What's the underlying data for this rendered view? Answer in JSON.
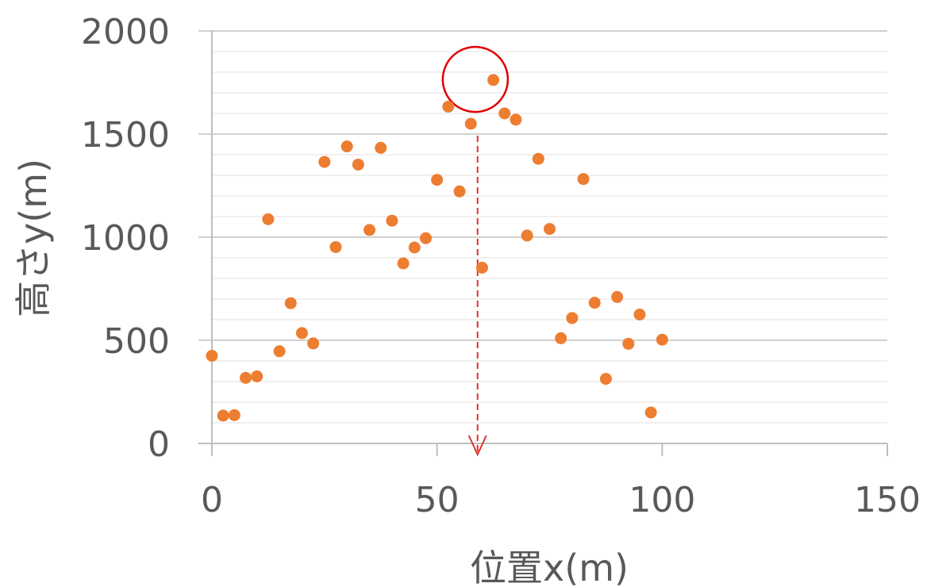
{
  "chart_data": {
    "type": "scatter",
    "xlabel": "位置x(m)",
    "ylabel": "高さy(m)",
    "xlim": [
      0,
      150
    ],
    "ylim": [
      0,
      2000
    ],
    "x_ticks": [
      "0",
      "50",
      "100",
      "150"
    ],
    "y_ticks": [
      "0",
      "500",
      "1000",
      "1500",
      "2000"
    ],
    "major_grid": true,
    "minor_grid": true,
    "legend": "none",
    "series": [
      {
        "color": "#ED7D31",
        "points": [
          [
            0,
            425
          ],
          [
            2.5,
            135
          ],
          [
            5,
            137
          ],
          [
            7.5,
            318
          ],
          [
            10,
            325
          ],
          [
            12.5,
            1087
          ],
          [
            15,
            447
          ],
          [
            17.5,
            680
          ],
          [
            20,
            535
          ],
          [
            22.5,
            485
          ],
          [
            25,
            1365
          ],
          [
            27.5,
            952
          ],
          [
            30,
            1440
          ],
          [
            32.5,
            1352
          ],
          [
            35,
            1035
          ],
          [
            37.5,
            1433
          ],
          [
            40,
            1080
          ],
          [
            42.5,
            873
          ],
          [
            45,
            950
          ],
          [
            47.5,
            995
          ],
          [
            50,
            1278
          ],
          [
            52.5,
            1633
          ],
          [
            55,
            1222
          ],
          [
            57.5,
            1550
          ],
          [
            60,
            852
          ],
          [
            62.5,
            1762
          ],
          [
            65,
            1600
          ],
          [
            67.5,
            1570
          ],
          [
            70,
            1008
          ],
          [
            72.5,
            1380
          ],
          [
            75,
            1040
          ],
          [
            77.5,
            510
          ],
          [
            80,
            608
          ],
          [
            82.5,
            1282
          ],
          [
            85,
            682
          ],
          [
            87.5,
            313
          ],
          [
            90,
            710
          ],
          [
            92.5,
            483
          ],
          [
            95,
            625
          ],
          [
            97.5,
            150
          ],
          [
            100,
            503
          ]
        ]
      }
    ],
    "annotations": {
      "highlight_circle": {
        "x": 58.5,
        "y": 1765,
        "color": "#E00000"
      },
      "arrow": {
        "x": 59,
        "y_from": 1500,
        "y_to": 0,
        "color": "#E03030",
        "style": "dashed"
      }
    }
  }
}
